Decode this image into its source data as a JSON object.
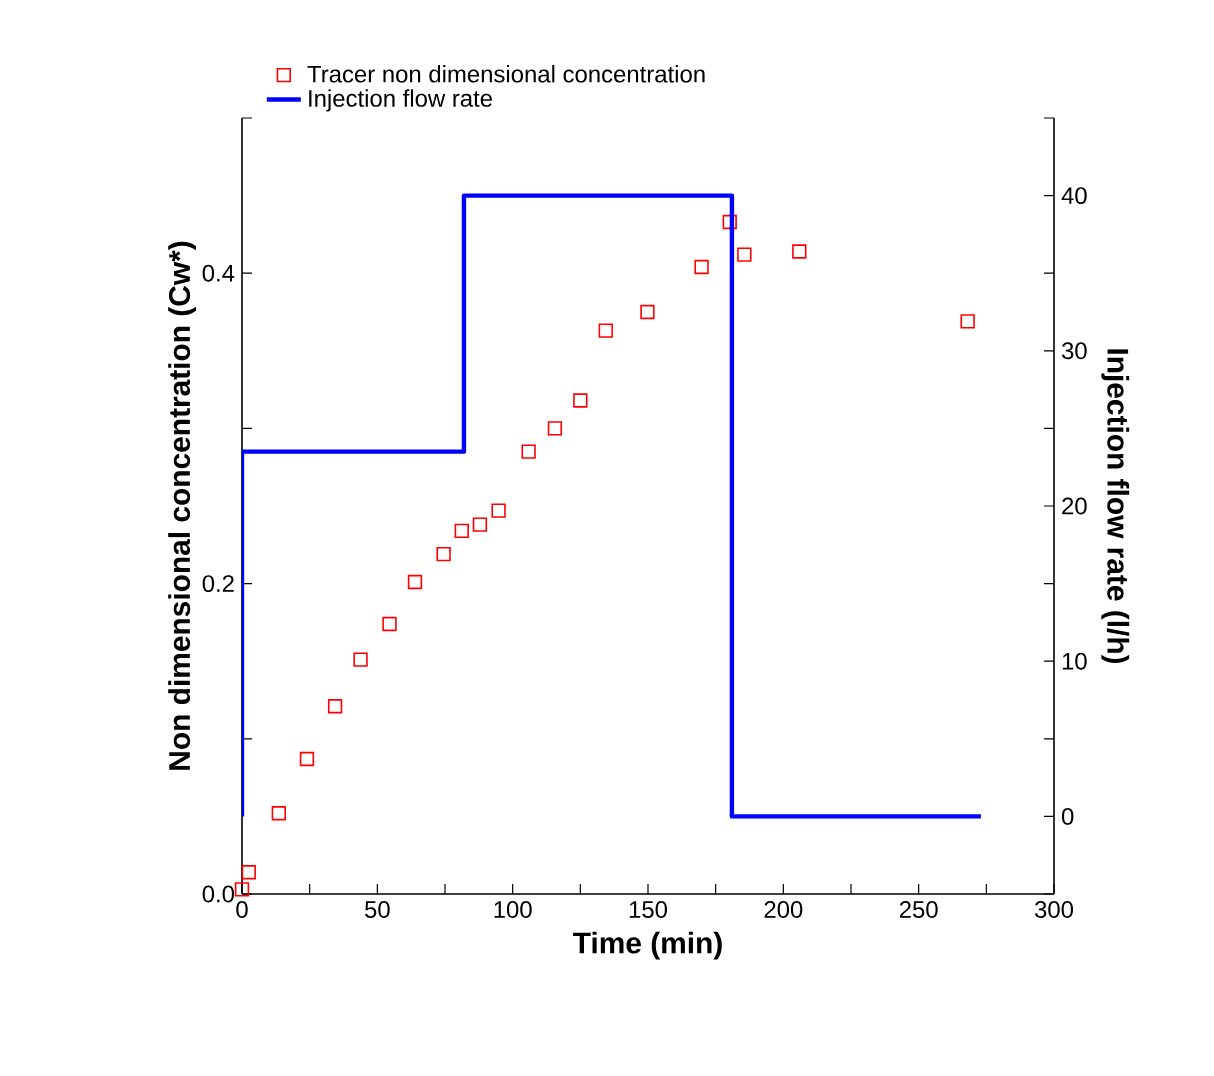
{
  "chart_data": {
    "type": "scatter",
    "xlabel": "Time (min)",
    "ylabel": "Non dimensional concentration (Cw*)",
    "y2label": "Injection flow rate (l/h)",
    "xlim": [
      0,
      300
    ],
    "xticks": [
      0,
      {
        "value": 25,
        "label": null
      },
      50,
      {
        "value": 75,
        "label": null
      },
      100,
      {
        "value": 125,
        "label": null
      },
      150,
      {
        "value": 175,
        "label": null
      },
      200,
      {
        "value": 225,
        "label": null
      },
      250,
      {
        "value": 275,
        "label": null
      },
      300
    ],
    "ylim": [
      0,
      0.5
    ],
    "yticks": [
      {
        "value": 0,
        "label": "0.0"
      },
      {
        "value": 0.1,
        "label": null
      },
      0.2,
      {
        "value": 0.3,
        "label": null
      },
      0.4,
      {
        "value": 0.5,
        "label": null
      }
    ],
    "y2lim": [
      -5,
      45
    ],
    "y2ticks": [
      {
        "value": -5,
        "label": null
      },
      0,
      {
        "value": 5,
        "label": null
      },
      10,
      {
        "value": 15,
        "label": null
      },
      20,
      {
        "value": 25,
        "label": null
      },
      30,
      {
        "value": 35,
        "label": null
      },
      40,
      {
        "value": 45,
        "label": null
      }
    ],
    "legend": "top left",
    "grid": false,
    "series": [
      {
        "name": "Tracer non dimensional concentration",
        "marker": "square",
        "color": "#ff0000",
        "x": [
          0,
          2.5,
          13.6,
          24.0,
          34.4,
          43.8,
          54.5,
          63.9,
          74.5,
          81.2,
          87.9,
          94.8,
          105.9,
          115.6,
          125.0,
          134.4,
          149.8,
          169.8,
          180.2,
          185.6,
          205.9,
          268.1
        ],
        "values": [
          0.003,
          0.014,
          0.052,
          0.087,
          0.121,
          0.151,
          0.174,
          0.201,
          0.219,
          0.234,
          0.238,
          0.247,
          0.285,
          0.3,
          0.318,
          0.363,
          0.375,
          0.404,
          0.433,
          0.412,
          0.414,
          0.369
        ]
      },
      {
        "name": "Injection flow rate",
        "type": "step",
        "axis": "y2",
        "color": "#0000ff",
        "line_style": "solid",
        "marker": "none",
        "x": [
          0,
          0,
          82,
          181,
          273
        ],
        "values": [
          0,
          23.5,
          40,
          0,
          0
        ]
      }
    ]
  }
}
